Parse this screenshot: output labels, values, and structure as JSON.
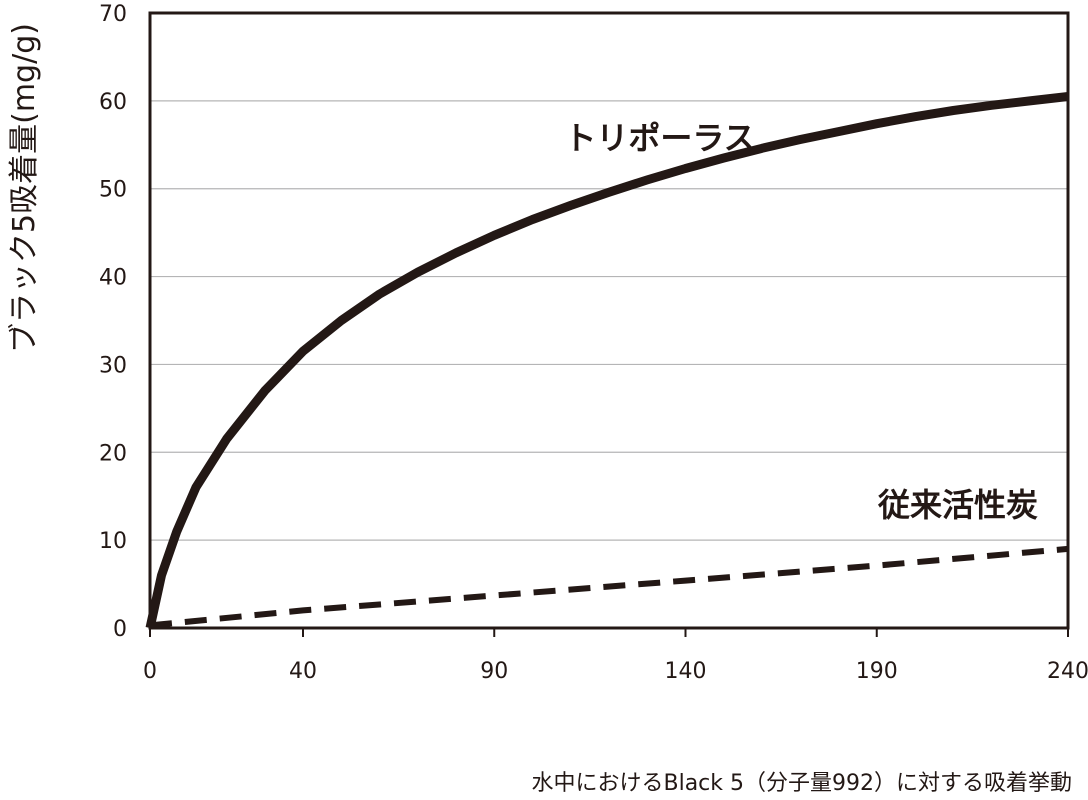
{
  "chart_data": {
    "type": "line",
    "title": "",
    "xlabel": "",
    "ylabel": "ブラック5吸着量(mg/g)",
    "caption": "水中におけるBlack 5（分子量992）に対する吸着挙動",
    "xlim": [
      0,
      240
    ],
    "ylim": [
      0,
      70
    ],
    "x_tick_labels": [
      "0",
      "40",
      "90",
      "140",
      "190",
      "240"
    ],
    "y_tick_labels": [
      "0",
      "10",
      "20",
      "30",
      "40",
      "50",
      "60",
      "70"
    ],
    "grid": "horizontal",
    "series": [
      {
        "name": "トリポーラス",
        "style": "solid",
        "x": [
          0,
          3,
          7,
          12,
          20,
          30,
          40,
          50,
          60,
          70,
          80,
          90,
          100,
          110,
          120,
          130,
          140,
          150,
          160,
          170,
          180,
          190,
          200,
          210,
          220,
          230,
          240
        ],
        "y": [
          0,
          6,
          11,
          16,
          21.5,
          27,
          31.5,
          35,
          38,
          40.5,
          42.7,
          44.7,
          46.5,
          48.1,
          49.6,
          51,
          52.3,
          53.5,
          54.6,
          55.6,
          56.5,
          57.4,
          58.2,
          58.9,
          59.5,
          60,
          60.5
        ]
      },
      {
        "name": "従来活性炭",
        "style": "dashed",
        "x": [
          0,
          40,
          90,
          140,
          190,
          240
        ],
        "y": [
          0.3,
          2,
          3.7,
          5.4,
          7.1,
          9
        ]
      }
    ],
    "colors": {
      "line": "#231815",
      "grid": "#b5b5b6",
      "frame": "#231815"
    }
  }
}
